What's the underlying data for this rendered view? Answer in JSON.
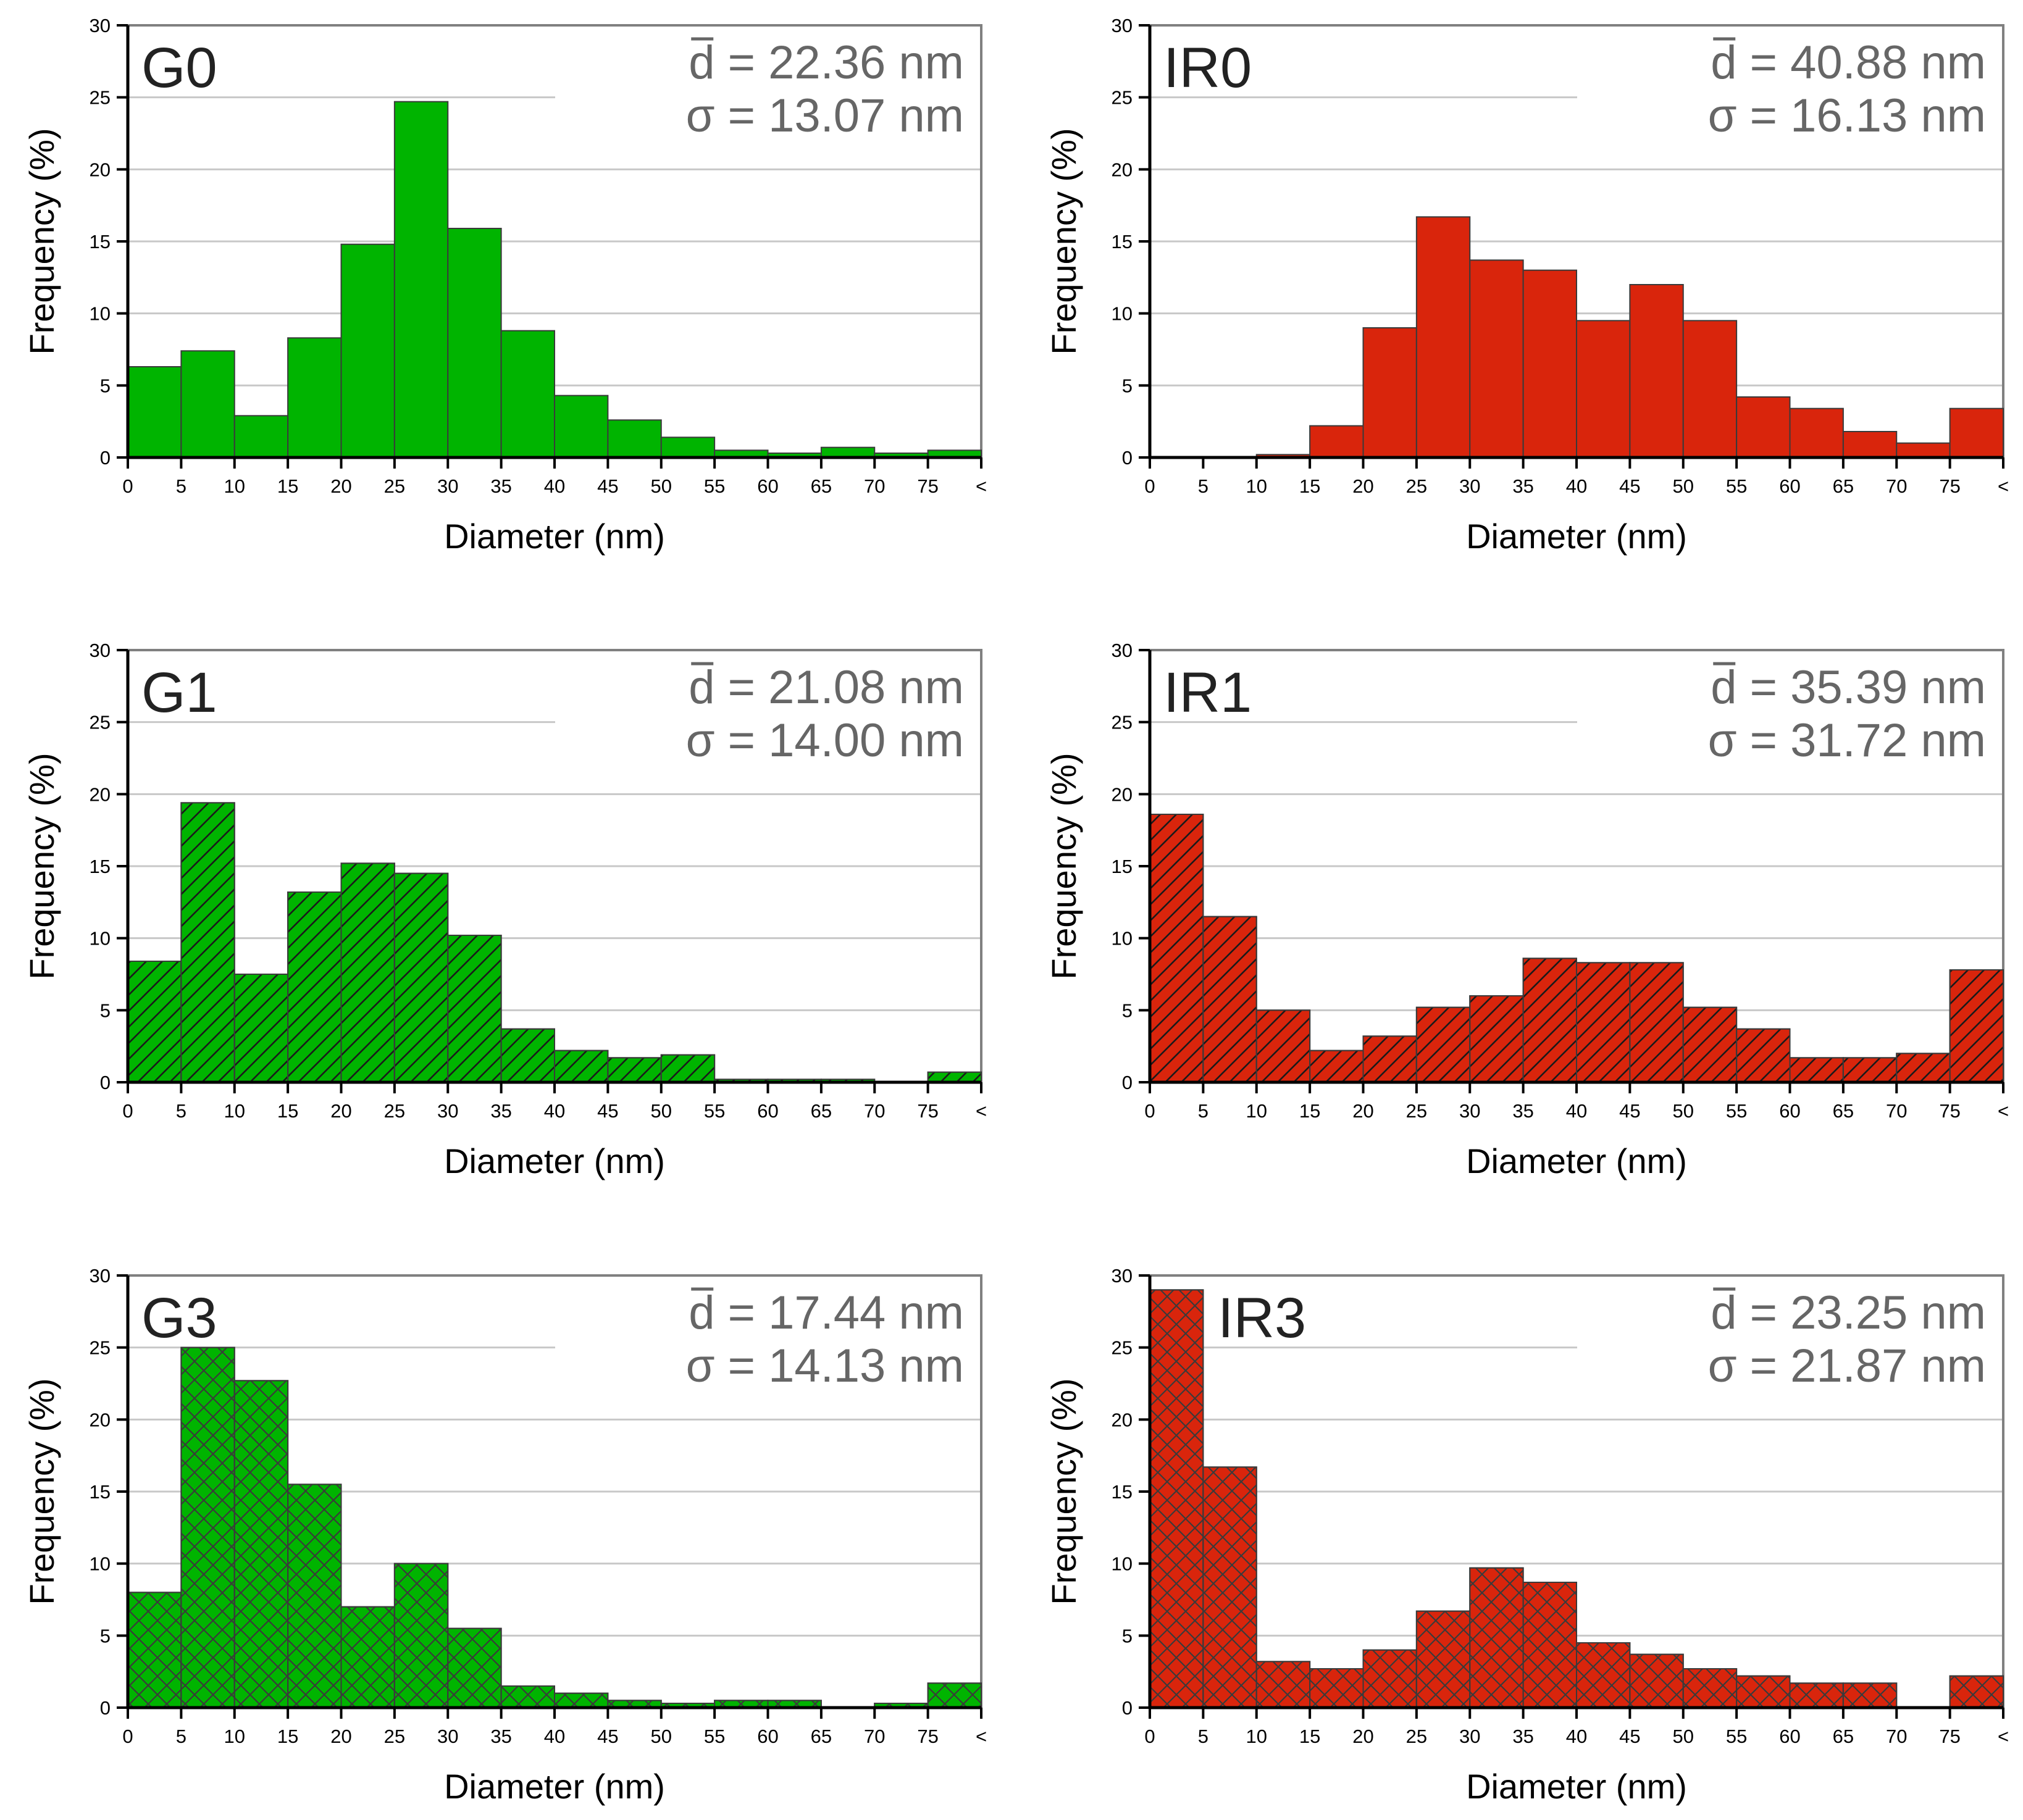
{
  "colors": {
    "green": "#00b400",
    "red": "#d9250c",
    "bar_edge": "#3a3a3a",
    "axis": "#000000",
    "frame": "#808080",
    "grid": "#c8c8c8",
    "stats_text": "#666666",
    "panel_label": "#222222"
  },
  "chart_data": [
    {
      "type": "bar",
      "panel_label": "G0",
      "stat_mean": "d = 22.36 nm",
      "stat_sd": "σ = 13.07 nm",
      "bar_color": "green",
      "hatch": "none",
      "xlabel": "Diameter (nm)",
      "ylabel": "Frequency (%)",
      "ylim": [
        0,
        30
      ],
      "yticks": [
        "0",
        "5",
        "10",
        "15",
        "20",
        "25",
        "30"
      ],
      "xticks": [
        "0",
        "5",
        "10",
        "15",
        "20",
        "25",
        "30",
        "35",
        "40",
        "45",
        "50",
        "55",
        "60",
        "65",
        "70",
        "75",
        "<"
      ],
      "bin_edges": [
        0,
        5,
        10,
        15,
        20,
        25,
        30,
        35,
        40,
        45,
        50,
        55,
        60,
        65,
        70,
        75,
        80
      ],
      "values": [
        6.3,
        7.4,
        2.9,
        8.3,
        14.8,
        24.7,
        15.9,
        8.8,
        4.3,
        2.6,
        1.4,
        0.5,
        0.3,
        0.7,
        0.3,
        0.5
      ],
      "grid": true
    },
    {
      "type": "bar",
      "panel_label": "IR0",
      "stat_mean": "d = 40.88 nm",
      "stat_sd": "σ = 16.13 nm",
      "bar_color": "red",
      "hatch": "none",
      "xlabel": "Diameter (nm)",
      "ylabel": "Frequency (%)",
      "ylim": [
        0,
        30
      ],
      "yticks": [
        "0",
        "5",
        "10",
        "15",
        "20",
        "25",
        "30"
      ],
      "xticks": [
        "0",
        "5",
        "10",
        "15",
        "20",
        "25",
        "30",
        "35",
        "40",
        "45",
        "50",
        "55",
        "60",
        "65",
        "70",
        "75",
        "<"
      ],
      "bin_edges": [
        0,
        5,
        10,
        15,
        20,
        25,
        30,
        35,
        40,
        45,
        50,
        55,
        60,
        65,
        70,
        75,
        80
      ],
      "values": [
        0,
        0,
        0.2,
        2.2,
        9.0,
        16.7,
        13.7,
        13.0,
        9.5,
        12.0,
        9.5,
        4.2,
        3.4,
        1.8,
        1.0,
        3.4
      ],
      "grid": true
    },
    {
      "type": "bar",
      "panel_label": "G1",
      "stat_mean": "d = 21.08 nm",
      "stat_sd": "σ = 14.00 nm",
      "bar_color": "green",
      "hatch": "diagonal",
      "xlabel": "Diameter (nm)",
      "ylabel": "Frequency (%)",
      "ylim": [
        0,
        30
      ],
      "yticks": [
        "0",
        "5",
        "10",
        "15",
        "20",
        "25",
        "30"
      ],
      "xticks": [
        "0",
        "5",
        "10",
        "15",
        "20",
        "25",
        "30",
        "35",
        "40",
        "45",
        "50",
        "55",
        "60",
        "65",
        "70",
        "75",
        "<"
      ],
      "bin_edges": [
        0,
        5,
        10,
        15,
        20,
        25,
        30,
        35,
        40,
        45,
        50,
        55,
        60,
        65,
        70,
        75,
        80
      ],
      "values": [
        8.4,
        19.4,
        7.5,
        13.2,
        15.2,
        14.5,
        10.2,
        3.7,
        2.2,
        1.7,
        1.9,
        0.2,
        0.2,
        0.2,
        0,
        0.7
      ],
      "grid": true
    },
    {
      "type": "bar",
      "panel_label": "IR1",
      "stat_mean": "d = 35.39 nm",
      "stat_sd": "σ = 31.72 nm",
      "bar_color": "red",
      "hatch": "diagonal",
      "xlabel": "Diameter (nm)",
      "ylabel": "Frequency (%)",
      "ylim": [
        0,
        30
      ],
      "yticks": [
        "0",
        "5",
        "10",
        "15",
        "20",
        "25",
        "30"
      ],
      "xticks": [
        "0",
        "5",
        "10",
        "15",
        "20",
        "25",
        "30",
        "35",
        "40",
        "45",
        "50",
        "55",
        "60",
        "65",
        "70",
        "75",
        "<"
      ],
      "bin_edges": [
        0,
        5,
        10,
        15,
        20,
        25,
        30,
        35,
        40,
        45,
        50,
        55,
        60,
        65,
        70,
        75,
        80
      ],
      "values": [
        18.6,
        11.5,
        5.0,
        2.2,
        3.2,
        5.2,
        6.0,
        8.6,
        8.3,
        8.3,
        5.2,
        3.7,
        1.7,
        1.7,
        2.0,
        7.8
      ],
      "grid": true
    },
    {
      "type": "bar",
      "panel_label": "G3",
      "stat_mean": "d = 17.44 nm",
      "stat_sd": "σ = 14.13 nm",
      "bar_color": "green",
      "hatch": "crosshatch",
      "xlabel": "Diameter (nm)",
      "ylabel": "Frequency (%)",
      "ylim": [
        0,
        30
      ],
      "yticks": [
        "0",
        "5",
        "10",
        "15",
        "20",
        "25",
        "30"
      ],
      "xticks": [
        "0",
        "5",
        "10",
        "15",
        "20",
        "25",
        "30",
        "35",
        "40",
        "45",
        "50",
        "55",
        "60",
        "65",
        "70",
        "75",
        "<"
      ],
      "bin_edges": [
        0,
        5,
        10,
        15,
        20,
        25,
        30,
        35,
        40,
        45,
        50,
        55,
        60,
        65,
        70,
        75,
        80
      ],
      "values": [
        8.0,
        25.0,
        22.7,
        15.5,
        7.0,
        10.0,
        5.5,
        1.5,
        1.0,
        0.5,
        0.3,
        0.5,
        0.5,
        0,
        0.3,
        1.7
      ],
      "grid": true
    },
    {
      "type": "bar",
      "panel_label": "IR3",
      "stat_mean": "d = 23.25 nm",
      "stat_sd": "σ = 21.87 nm",
      "bar_color": "red",
      "hatch": "crosshatch",
      "xlabel": "Diameter (nm)",
      "ylabel": "Frequency (%)",
      "ylim": [
        0,
        30
      ],
      "yticks": [
        "0",
        "5",
        "10",
        "15",
        "20",
        "25",
        "30"
      ],
      "xticks": [
        "0",
        "5",
        "10",
        "15",
        "20",
        "25",
        "30",
        "35",
        "40",
        "45",
        "50",
        "55",
        "60",
        "65",
        "70",
        "75",
        "<"
      ],
      "bin_edges": [
        0,
        5,
        10,
        15,
        20,
        25,
        30,
        35,
        40,
        45,
        50,
        55,
        60,
        65,
        70,
        75,
        80
      ],
      "values": [
        29.0,
        16.7,
        3.2,
        2.7,
        4.0,
        6.7,
        9.7,
        8.7,
        4.5,
        3.7,
        2.7,
        2.2,
        1.7,
        1.7,
        0,
        2.2
      ],
      "grid": true
    }
  ]
}
